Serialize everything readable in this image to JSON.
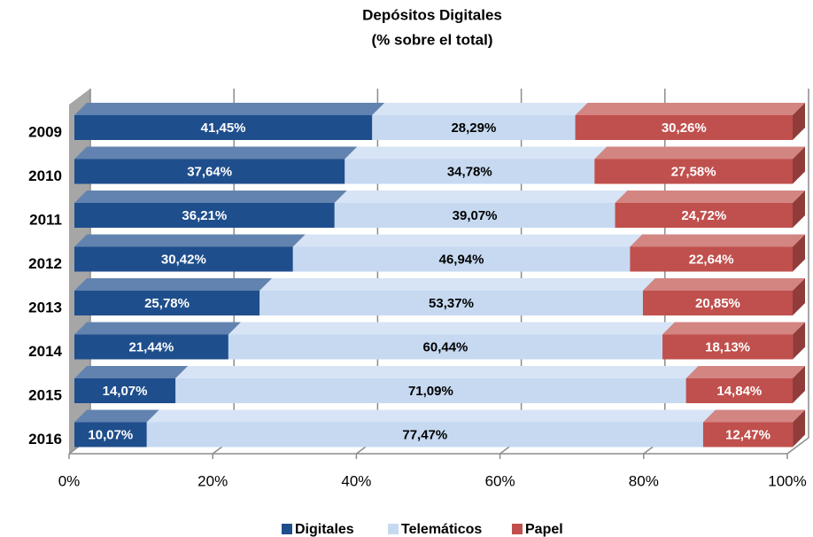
{
  "chart_data": {
    "type": "bar3d_stacked_horizontal",
    "title": "Depósitos Digitales",
    "subtitle": "(% sobre el total)",
    "categories": [
      "2009",
      "2010",
      "2011",
      "2012",
      "2013",
      "2014",
      "2015",
      "2016"
    ],
    "series": [
      {
        "name": "Digitales",
        "color": "#1f4e8c",
        "values": [
          41.45,
          37.64,
          36.21,
          30.42,
          25.78,
          21.44,
          14.07,
          10.07
        ],
        "value_labels": [
          "41,45%",
          "37,64%",
          "36,21%",
          "30,42%",
          "25,78%",
          "21,44%",
          "14,07%",
          "10,07%"
        ]
      },
      {
        "name": "Telemáticos",
        "color": "#c6d9f1",
        "values": [
          28.29,
          34.78,
          39.07,
          46.94,
          53.37,
          60.44,
          71.09,
          77.47
        ],
        "value_labels": [
          "28,29%",
          "34,78%",
          "39,07%",
          "46,94%",
          "53,37%",
          "60,44%",
          "71,09%",
          "77,47%"
        ]
      },
      {
        "name": "Papel",
        "color": "#c0504d",
        "values": [
          30.26,
          27.58,
          24.72,
          22.64,
          20.85,
          18.13,
          14.84,
          12.47
        ],
        "value_labels": [
          "30,26%",
          "27,58%",
          "24,72%",
          "22,64%",
          "20,85%",
          "18,13%",
          "14,84%",
          "12,47%"
        ]
      }
    ],
    "xlim": [
      0,
      100
    ],
    "xticks": [
      {
        "value": 0,
        "label": "0%"
      },
      {
        "value": 20,
        "label": "20%"
      },
      {
        "value": 40,
        "label": "40%"
      },
      {
        "value": 60,
        "label": "60%"
      },
      {
        "value": 80,
        "label": "80%"
      },
      {
        "value": 100,
        "label": "100%"
      }
    ],
    "grid": true,
    "legend": "bottom"
  }
}
